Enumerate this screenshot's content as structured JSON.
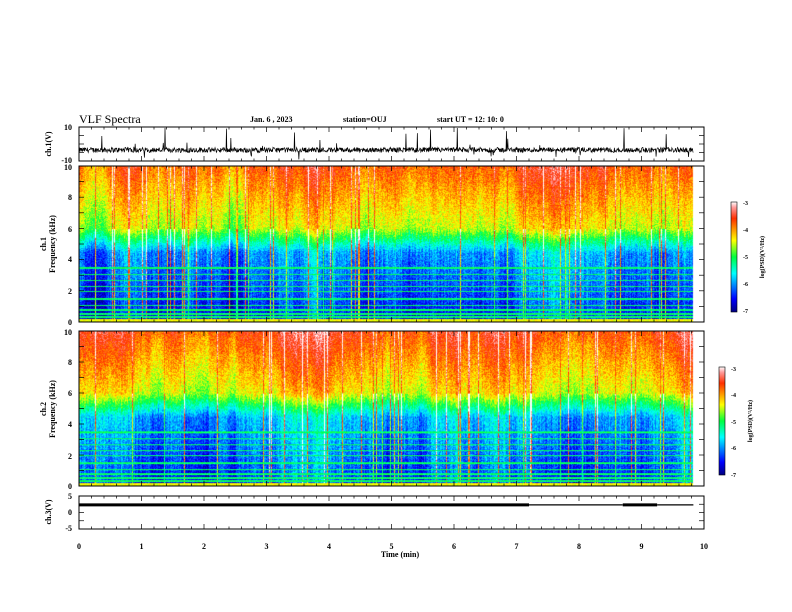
{
  "header": {
    "title": "VLF Spectra",
    "date": "Jan. 6 , 2023",
    "station": "station=OUJ",
    "start_ut": "start  UT =  12: 10: 0"
  },
  "chart_data": [
    {
      "type": "line",
      "name": "ch1-waveform",
      "ylabel": "ch.1(V)",
      "ylim": [
        -10,
        10
      ],
      "yticks": [
        "10",
        "-10"
      ],
      "xlim": [
        0,
        10
      ],
      "data_end_min": 9.83,
      "trace": {
        "baseline_v": -3.5,
        "noise_v": 1.5,
        "spike_top_v": 10
      }
    },
    {
      "type": "heatmap",
      "name": "ch1-spectrogram",
      "ylabel_line1": "ch.1",
      "ylabel_line2": "Frequency (kHz)",
      "ylim": [
        0,
        10
      ],
      "yticks": [
        "0",
        "2",
        "4",
        "6",
        "8",
        "10"
      ],
      "xlim": [
        0,
        10
      ],
      "data_end_min": 9.83,
      "colorbar": {
        "label": "log(PSD)(V²/Hz)",
        "range": [
          -7,
          -3
        ],
        "ticks": [
          "-3",
          "-4",
          "-5",
          "-6",
          "-7"
        ]
      }
    },
    {
      "type": "heatmap",
      "name": "ch2-spectrogram",
      "ylabel_line1": "ch.2",
      "ylabel_line2": "Frequency (kHz)",
      "ylim": [
        0,
        10
      ],
      "yticks": [
        "0",
        "2",
        "4",
        "6",
        "8",
        "10"
      ],
      "xlim": [
        0,
        10
      ],
      "data_end_min": 9.83,
      "colorbar": {
        "label": "log(PSD)(V²/Hz)",
        "range": [
          -7,
          -3
        ],
        "ticks": [
          "-3",
          "-4",
          "-5",
          "-6",
          "-7"
        ]
      }
    },
    {
      "type": "line",
      "name": "ch3-level",
      "ylabel": "ch.3(V)",
      "ylim": [
        -5,
        5
      ],
      "yticks": [
        "5",
        "0",
        "-5"
      ],
      "xlim": [
        0,
        10
      ],
      "xlabel": "Time (min)",
      "xticks": [
        "0",
        "1",
        "2",
        "3",
        "4",
        "5",
        "6",
        "7",
        "8",
        "9",
        "10"
      ],
      "segments": [
        {
          "x": [
            0,
            7.2
          ],
          "y": 2.3,
          "width": "thick"
        },
        {
          "x": [
            7.2,
            8.7
          ],
          "y": 2.3,
          "width": "thin"
        },
        {
          "x": [
            8.7,
            9.25
          ],
          "y": 2.3,
          "width": "thick"
        },
        {
          "x": [
            9.25,
            9.83
          ],
          "y": 2.3,
          "width": "thin"
        }
      ]
    }
  ]
}
